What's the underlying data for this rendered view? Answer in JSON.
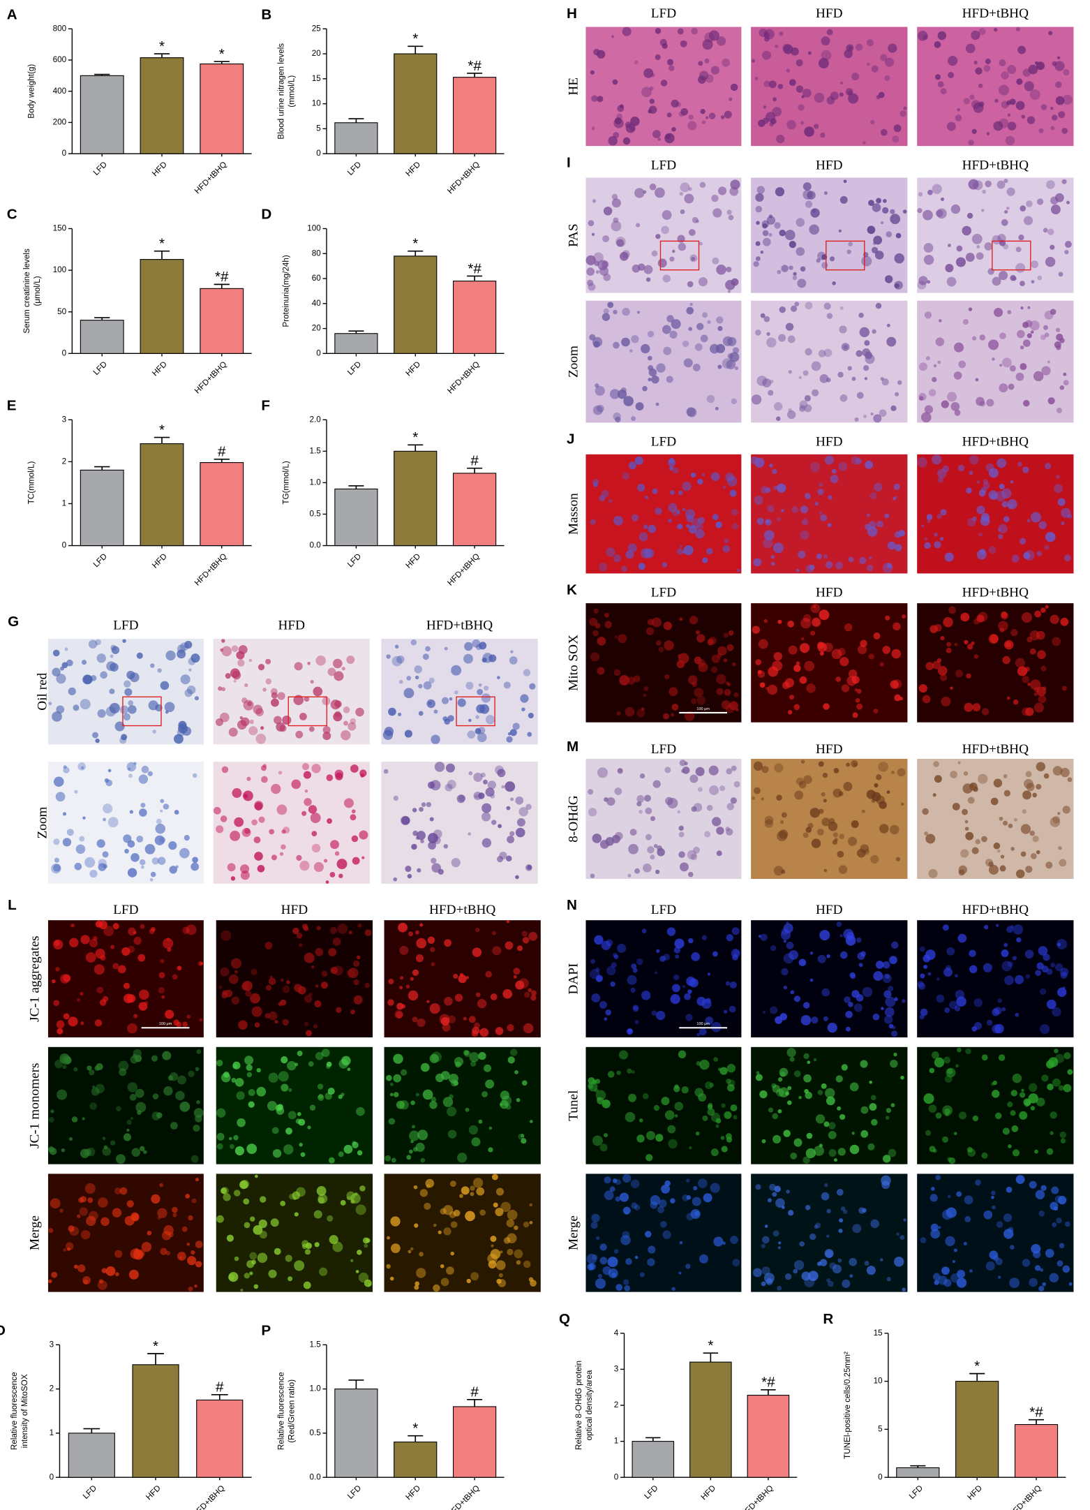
{
  "chart_data": [
    {
      "type": "bar",
      "label": "A",
      "ylabel": [
        "Body weight(g)"
      ],
      "categories": [
        "LFD",
        "HFD",
        "HFD+tBHQ"
      ],
      "values": [
        500,
        615,
        575
      ],
      "errors": [
        8,
        25,
        15
      ],
      "annotations": [
        null,
        "*",
        "*"
      ],
      "colors": [
        "#a6a8ab",
        "#8c7b3b",
        "#f27f7f"
      ],
      "ylim": [
        0,
        800
      ],
      "yticks": [
        0,
        200,
        400,
        600,
        800
      ]
    },
    {
      "type": "bar",
      "label": "B",
      "ylabel": [
        "Blood urine nitragen levels",
        "(mmol/L)"
      ],
      "categories": [
        "LFD",
        "HFD",
        "HFD+tBHQ"
      ],
      "values": [
        6.2,
        20,
        15.3
      ],
      "errors": [
        0.8,
        1.5,
        0.8
      ],
      "annotations": [
        null,
        "*",
        "*#"
      ],
      "colors": [
        "#a6a8ab",
        "#8c7b3b",
        "#f27f7f"
      ],
      "ylim": [
        0,
        25
      ],
      "yticks": [
        0,
        5,
        10,
        15,
        20,
        25
      ]
    },
    {
      "type": "bar",
      "label": "C",
      "ylabel": [
        "Serum creatinine levels",
        "(μmol/L)"
      ],
      "categories": [
        "LFD",
        "HFD",
        "HFD+tBHQ"
      ],
      "values": [
        40,
        113,
        78
      ],
      "errors": [
        3,
        10,
        5
      ],
      "annotations": [
        null,
        "*",
        "*#"
      ],
      "colors": [
        "#a6a8ab",
        "#8c7b3b",
        "#f27f7f"
      ],
      "ylim": [
        0,
        150
      ],
      "yticks": [
        0,
        50,
        100,
        150
      ]
    },
    {
      "type": "bar",
      "label": "D",
      "ylabel": [
        "Proteinuria(mg/24h)"
      ],
      "categories": [
        "LFD",
        "HFD",
        "HFD+tBHQ"
      ],
      "values": [
        16,
        78,
        58
      ],
      "errors": [
        2,
        4,
        4
      ],
      "annotations": [
        null,
        "*",
        "*#"
      ],
      "colors": [
        "#a6a8ab",
        "#8c7b3b",
        "#f27f7f"
      ],
      "ylim": [
        0,
        100
      ],
      "yticks": [
        0,
        20,
        40,
        60,
        80,
        100
      ]
    },
    {
      "type": "bar",
      "label": "E",
      "ylabel": [
        "TC(mmol/L)"
      ],
      "categories": [
        "LFD",
        "HFD",
        "HFD+tBHQ"
      ],
      "values": [
        1.8,
        2.43,
        1.98
      ],
      "errors": [
        0.08,
        0.15,
        0.08
      ],
      "annotations": [
        null,
        "*",
        "#"
      ],
      "colors": [
        "#a6a8ab",
        "#8c7b3b",
        "#f27f7f"
      ],
      "ylim": [
        0,
        3
      ],
      "yticks": [
        0,
        1,
        2,
        3
      ]
    },
    {
      "type": "bar",
      "label": "F",
      "ylabel": [
        "TG(mmol/L)"
      ],
      "categories": [
        "LFD",
        "HFD",
        "HFD+tBHQ"
      ],
      "values": [
        0.9,
        1.5,
        1.15
      ],
      "errors": [
        0.05,
        0.1,
        0.08
      ],
      "annotations": [
        null,
        "*",
        "#"
      ],
      "colors": [
        "#a6a8ab",
        "#8c7b3b",
        "#f27f7f"
      ],
      "ylim": [
        0,
        2
      ],
      "yticks": [
        {
          "value": 0,
          "label": "0.0"
        },
        0.5,
        {
          "value": 1,
          "label": "1.0"
        },
        1.5,
        {
          "value": 2,
          "label": "2.0"
        }
      ]
    },
    {
      "type": "bar",
      "label": "O",
      "ylabel": [
        "Relative fluorescence",
        "intensity of MitoSOX"
      ],
      "categories": [
        "LFD",
        "HFD",
        "HFD+tBHQ"
      ],
      "values": [
        1.0,
        2.55,
        1.75
      ],
      "errors": [
        0.1,
        0.25,
        0.12
      ],
      "annotations": [
        null,
        "*",
        "#"
      ],
      "colors": [
        "#a6a8ab",
        "#8c7b3b",
        "#f27f7f"
      ],
      "ylim": [
        0,
        3
      ],
      "yticks": [
        0,
        1,
        2,
        3
      ]
    },
    {
      "type": "bar",
      "label": "P",
      "ylabel": [
        "Relative fluorescence",
        "(Red/Green ratio)"
      ],
      "categories": [
        "LFD",
        "HFD",
        "HFD+tBHQ"
      ],
      "values": [
        1.0,
        0.4,
        0.8
      ],
      "errors": [
        0.1,
        0.07,
        0.08
      ],
      "annotations": [
        null,
        "*",
        "#"
      ],
      "colors": [
        "#a6a8ab",
        "#8c7b3b",
        "#f27f7f"
      ],
      "ylim": [
        0,
        1.5
      ],
      "yticks": [
        {
          "value": 0,
          "label": "0.0"
        },
        0.5,
        {
          "value": 1,
          "label": "1.0"
        },
        1.5
      ]
    },
    {
      "type": "bar",
      "label": "Q",
      "ylabel": [
        "Relative 8-OHdG protein",
        "optical density/area"
      ],
      "categories": [
        "LFD",
        "HFD",
        "HFD+tBHQ"
      ],
      "values": [
        1.0,
        3.2,
        2.28
      ],
      "errors": [
        0.1,
        0.25,
        0.15
      ],
      "annotations": [
        null,
        "*",
        "*#"
      ],
      "colors": [
        "#a6a8ab",
        "#8c7b3b",
        "#f27f7f"
      ],
      "ylim": [
        0,
        4
      ],
      "yticks": [
        0,
        1,
        2,
        3,
        4
      ]
    },
    {
      "type": "bar",
      "label": "R",
      "ylabel": [
        "TUNEl-positive cells/0.25mm²"
      ],
      "categories": [
        "LFD",
        "HFD",
        "HFD+tBHQ"
      ],
      "values": [
        1.0,
        10,
        5.5
      ],
      "errors": [
        0.2,
        0.8,
        0.5
      ],
      "annotations": [
        null,
        "*",
        "*#"
      ],
      "colors": [
        "#a6a8ab",
        "#8c7b3b",
        "#f27f7f"
      ],
      "ylim": [
        0,
        15
      ],
      "yticks": [
        0,
        5,
        10,
        15
      ]
    }
  ],
  "image_panels": [
    {
      "label": "G",
      "columns": [
        "LFD",
        "HFD",
        "HFD+tBHQ"
      ],
      "rows": [
        "Oil red",
        "Zoom"
      ]
    },
    {
      "label": "H",
      "columns": [
        "LFD",
        "HFD",
        "HFD+tBHQ"
      ],
      "rows": [
        "HE"
      ]
    },
    {
      "label": "I",
      "columns": [
        "LFD",
        "HFD",
        "HFD+tBHQ"
      ],
      "rows": [
        "PAS",
        "Zoom"
      ]
    },
    {
      "label": "J",
      "columns": [
        "LFD",
        "HFD",
        "HFD+tBHQ"
      ],
      "rows": [
        "Masson"
      ]
    },
    {
      "label": "K",
      "columns": [
        "LFD",
        "HFD",
        "HFD+tBHQ"
      ],
      "rows": [
        "Mito SOX"
      ],
      "scale_bar": "100 μm"
    },
    {
      "label": "M",
      "columns": [
        "LFD",
        "HFD",
        "HFD+tBHQ"
      ],
      "rows": [
        "8-OHdG"
      ]
    },
    {
      "label": "L",
      "columns": [
        "LFD",
        "HFD",
        "HFD+tBHQ"
      ],
      "rows": [
        "JC-1 aggregates",
        "JC-1 monomers",
        "Merge"
      ],
      "scale_bar": "100 μm"
    },
    {
      "label": "N",
      "columns": [
        "LFD",
        "HFD",
        "HFD+tBHQ"
      ],
      "rows": [
        "DAPI",
        "Tunel",
        "Merge"
      ],
      "scale_bar": "100 μm"
    }
  ]
}
